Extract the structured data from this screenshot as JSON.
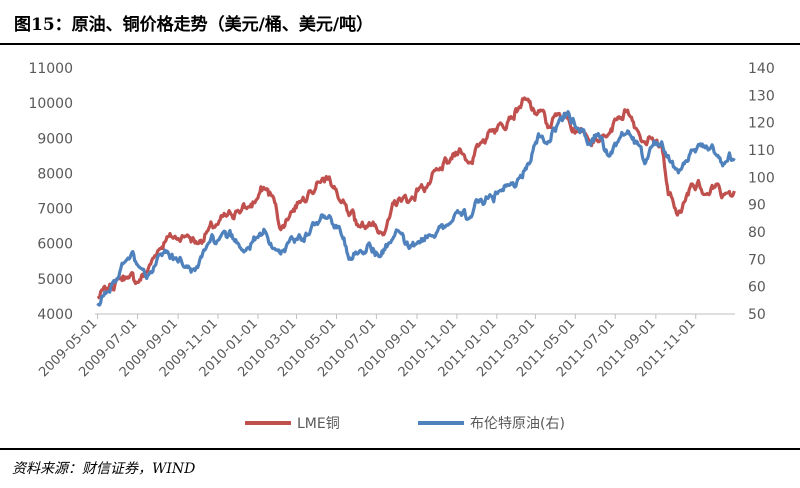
{
  "title": "图15：原油、铜价格走势（美元/桶、美元/吨）",
  "source": "资料来源：财信证券，WIND",
  "colors": {
    "copper": "#C0504D",
    "oil": "#4F81BD",
    "axis": "#7f7f7f",
    "text": "#595959"
  },
  "chart_data": {
    "type": "line",
    "grid": false,
    "legend_position": "bottom",
    "x_tick_labels": [
      "2009-05-01",
      "2009-07-01",
      "2009-09-01",
      "2009-11-01",
      "2010-01-01",
      "2010-03-01",
      "2010-05-01",
      "2010-07-01",
      "2010-09-01",
      "2010-11-01",
      "2011-01-01",
      "2011-03-01",
      "2011-05-01",
      "2011-07-01",
      "2011-09-01",
      "2011-11-01"
    ],
    "y_left": {
      "range": [
        4000,
        11000
      ],
      "ticks": [
        4000,
        5000,
        6000,
        7000,
        8000,
        9000,
        10000,
        11000
      ]
    },
    "y_right": {
      "range": [
        50,
        140
      ],
      "ticks": [
        50,
        60,
        70,
        80,
        90,
        100,
        110,
        120,
        130,
        140
      ]
    },
    "x_range": [
      "2009-04-27",
      "2011-12-31"
    ],
    "series": [
      {
        "name": "LME铜",
        "axis": "left",
        "color": "#C0504D",
        "points": [
          [
            "2009-05-01",
            4450
          ],
          [
            "2009-05-15",
            4700
          ],
          [
            "2009-06-01",
            5000
          ],
          [
            "2009-06-15",
            5050
          ],
          [
            "2009-07-01",
            4900
          ],
          [
            "2009-07-15",
            5200
          ],
          [
            "2009-08-01",
            5800
          ],
          [
            "2009-08-15",
            6200
          ],
          [
            "2009-09-01",
            6150
          ],
          [
            "2009-09-15",
            6250
          ],
          [
            "2009-10-01",
            6000
          ],
          [
            "2009-10-15",
            6350
          ],
          [
            "2009-11-01",
            6550
          ],
          [
            "2009-11-15",
            6800
          ],
          [
            "2009-12-01",
            6950
          ],
          [
            "2009-12-15",
            7000
          ],
          [
            "2010-01-01",
            7300
          ],
          [
            "2010-01-10",
            7600
          ],
          [
            "2010-01-25",
            7300
          ],
          [
            "2010-02-05",
            6400
          ],
          [
            "2010-02-20",
            6900
          ],
          [
            "2010-03-05",
            7200
          ],
          [
            "2010-03-20",
            7500
          ],
          [
            "2010-04-05",
            7750
          ],
          [
            "2010-04-20",
            7900
          ],
          [
            "2010-05-05",
            7250
          ],
          [
            "2010-05-20",
            6800
          ],
          [
            "2010-06-05",
            6500
          ],
          [
            "2010-06-20",
            6600
          ],
          [
            "2010-07-05",
            6300
          ],
          [
            "2010-07-20",
            6700
          ],
          [
            "2010-08-05",
            7300
          ],
          [
            "2010-08-20",
            7200
          ],
          [
            "2010-09-05",
            7600
          ],
          [
            "2010-09-20",
            7700
          ],
          [
            "2010-10-05",
            8100
          ],
          [
            "2010-10-20",
            8300
          ],
          [
            "2010-11-05",
            8700
          ],
          [
            "2010-11-20",
            8300
          ],
          [
            "2010-12-05",
            8800
          ],
          [
            "2010-12-20",
            9200
          ],
          [
            "2011-01-05",
            9400
          ],
          [
            "2011-01-20",
            9600
          ],
          [
            "2011-02-05",
            9900
          ],
          [
            "2011-02-15",
            10100
          ],
          [
            "2011-02-28",
            9700
          ],
          [
            "2011-03-10",
            9800
          ],
          [
            "2011-03-20",
            9300
          ],
          [
            "2011-04-05",
            9700
          ],
          [
            "2011-04-20",
            9600
          ],
          [
            "2011-05-05",
            9200
          ],
          [
            "2011-05-20",
            9000
          ],
          [
            "2011-06-05",
            8900
          ],
          [
            "2011-06-20",
            9100
          ],
          [
            "2011-07-05",
            9600
          ],
          [
            "2011-07-20",
            9800
          ],
          [
            "2011-08-05",
            9200
          ],
          [
            "2011-08-15",
            8900
          ],
          [
            "2011-08-25",
            9000
          ],
          [
            "2011-09-10",
            8800
          ],
          [
            "2011-09-20",
            7400
          ],
          [
            "2011-10-01",
            7000
          ],
          [
            "2011-10-10",
            6900
          ],
          [
            "2011-10-25",
            7700
          ],
          [
            "2011-11-05",
            7800
          ],
          [
            "2011-11-20",
            7400
          ],
          [
            "2011-12-05",
            7700
          ],
          [
            "2011-12-15",
            7400
          ],
          [
            "2011-12-30",
            7500
          ]
        ]
      },
      {
        "name": "布伦特原油(右)",
        "axis": "right",
        "color": "#4F81BD",
        "points": [
          [
            "2009-05-01",
            53
          ],
          [
            "2009-05-15",
            58
          ],
          [
            "2009-06-01",
            63
          ],
          [
            "2009-06-15",
            70
          ],
          [
            "2009-07-01",
            68
          ],
          [
            "2009-07-15",
            63
          ],
          [
            "2009-08-01",
            71
          ],
          [
            "2009-08-15",
            73
          ],
          [
            "2009-09-01",
            69
          ],
          [
            "2009-09-15",
            67
          ],
          [
            "2009-10-01",
            67
          ],
          [
            "2009-10-15",
            75
          ],
          [
            "2009-11-01",
            77
          ],
          [
            "2009-11-15",
            78
          ],
          [
            "2009-12-01",
            76
          ],
          [
            "2009-12-15",
            74
          ],
          [
            "2010-01-01",
            78
          ],
          [
            "2010-01-10",
            81
          ],
          [
            "2010-01-25",
            74
          ],
          [
            "2010-02-05",
            72
          ],
          [
            "2010-02-20",
            78
          ],
          [
            "2010-03-05",
            79
          ],
          [
            "2010-03-20",
            79
          ],
          [
            "2010-04-05",
            84
          ],
          [
            "2010-04-20",
            86
          ],
          [
            "2010-05-05",
            82
          ],
          [
            "2010-05-20",
            70
          ],
          [
            "2010-06-05",
            73
          ],
          [
            "2010-06-20",
            76
          ],
          [
            "2010-07-05",
            71
          ],
          [
            "2010-07-20",
            76
          ],
          [
            "2010-08-05",
            80
          ],
          [
            "2010-08-20",
            74
          ],
          [
            "2010-09-05",
            76
          ],
          [
            "2010-09-20",
            79
          ],
          [
            "2010-10-05",
            82
          ],
          [
            "2010-10-20",
            83
          ],
          [
            "2010-11-05",
            87
          ],
          [
            "2010-11-20",
            85
          ],
          [
            "2010-12-05",
            91
          ],
          [
            "2010-12-20",
            93
          ],
          [
            "2011-01-05",
            95
          ],
          [
            "2011-01-20",
            97
          ],
          [
            "2011-02-05",
            100
          ],
          [
            "2011-02-15",
            103
          ],
          [
            "2011-02-28",
            112
          ],
          [
            "2011-03-10",
            115
          ],
          [
            "2011-03-20",
            113
          ],
          [
            "2011-04-05",
            120
          ],
          [
            "2011-04-20",
            124
          ],
          [
            "2011-05-05",
            118
          ],
          [
            "2011-05-20",
            112
          ],
          [
            "2011-06-05",
            116
          ],
          [
            "2011-06-20",
            108
          ],
          [
            "2011-07-05",
            113
          ],
          [
            "2011-07-20",
            117
          ],
          [
            "2011-08-05",
            112
          ],
          [
            "2011-08-15",
            105
          ],
          [
            "2011-08-25",
            111
          ],
          [
            "2011-09-10",
            113
          ],
          [
            "2011-09-20",
            108
          ],
          [
            "2011-10-01",
            103
          ],
          [
            "2011-10-10",
            103
          ],
          [
            "2011-10-25",
            110
          ],
          [
            "2011-11-05",
            112
          ],
          [
            "2011-11-20",
            110
          ],
          [
            "2011-12-05",
            108
          ],
          [
            "2011-12-15",
            105
          ],
          [
            "2011-12-30",
            107
          ]
        ]
      }
    ]
  }
}
